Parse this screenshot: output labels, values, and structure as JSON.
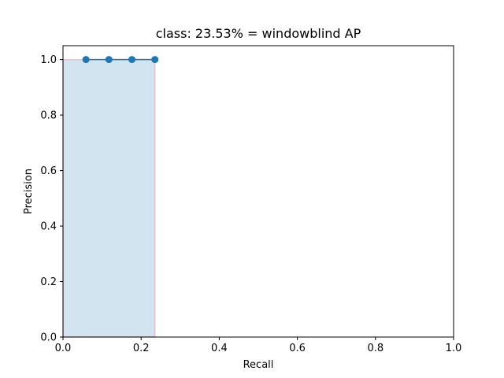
{
  "chart_data": {
    "type": "area",
    "title": "class: 23.53% = windowblind AP",
    "xlabel": "Recall",
    "ylabel": "Precision",
    "xlim": [
      0.0,
      1.0
    ],
    "ylim": [
      0.0,
      1.05
    ],
    "xticks": [
      "0.0",
      "0.2",
      "0.4",
      "0.6",
      "0.8",
      "1.0"
    ],
    "yticks": [
      "0.0",
      "0.2",
      "0.4",
      "0.6",
      "0.8",
      "1.0"
    ],
    "grid": false,
    "series": [
      {
        "kind": "line-with-markers",
        "color": "#1f77b4",
        "x": [
          0.0588,
          0.1176,
          0.1765,
          0.2353
        ],
        "y": [
          1.0,
          1.0,
          1.0,
          1.0
        ]
      },
      {
        "kind": "filled-area",
        "fill_color": "#1f77b4",
        "fill_opacity": 0.2,
        "edge_color": "#ff0000",
        "edge_opacity": 0.2,
        "x": [
          0.0,
          0.0,
          0.2353,
          0.2353
        ],
        "y": [
          0.0,
          1.0,
          1.0,
          0.0
        ]
      }
    ]
  }
}
